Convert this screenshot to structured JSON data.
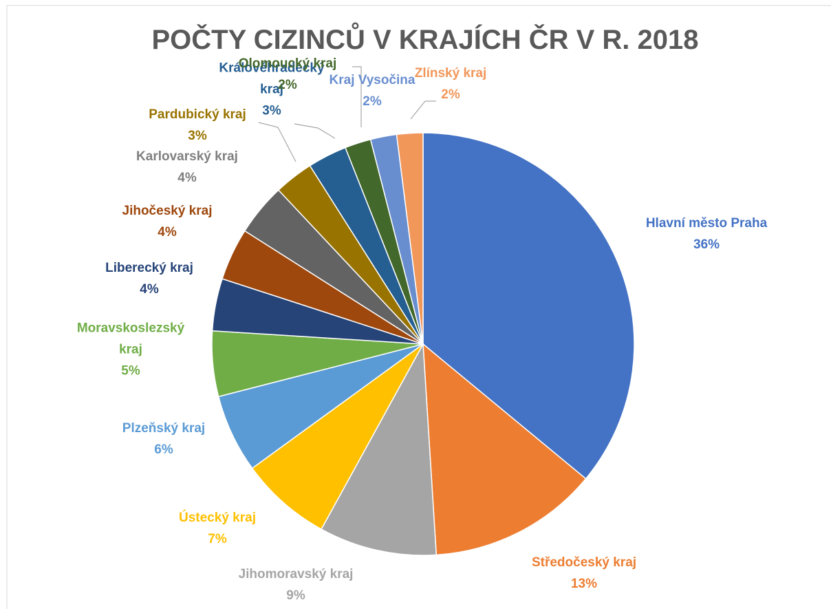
{
  "chart_data": {
    "type": "pie",
    "title": "POČTY CIZINCŮ V KRAJÍCH ČR V R. 2018",
    "categories": [
      "Hlavní město Praha",
      "Středočeský kraj",
      "Jihomoravský kraj",
      "Ústecký kraj",
      "Plzeňský kraj",
      "Moravskoslezský kraj",
      "Liberecký kraj",
      "Jihočeský kraj",
      "Karlovarský kraj",
      "Pardubický kraj",
      "Královéhradecký kraj",
      "Olomoucký kraj",
      "Kraj Vysočina",
      "Zlínský kraj"
    ],
    "values": [
      36,
      13,
      9,
      7,
      6,
      5,
      4,
      4,
      4,
      3,
      3,
      2,
      2,
      2
    ],
    "value_labels": [
      "36%",
      "13%",
      "9%",
      "7%",
      "6%",
      "5%",
      "4%",
      "4%",
      "4%",
      "3%",
      "3%",
      "2%",
      "2%",
      "2%"
    ],
    "colors": [
      "#4472c4",
      "#ed7d31",
      "#a5a5a5",
      "#ffc000",
      "#5b9bd5",
      "#70ad47",
      "#264478",
      "#9e480e",
      "#636363",
      "#997300",
      "#255e91",
      "#43682b",
      "#698ed0",
      "#f1975a"
    ]
  }
}
